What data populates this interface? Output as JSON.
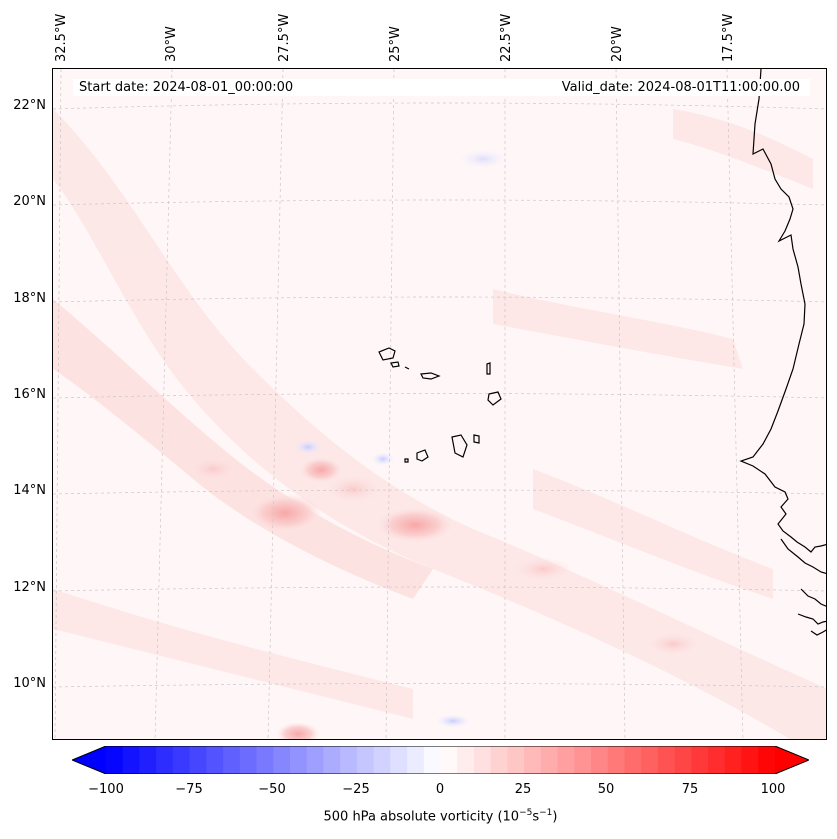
{
  "map": {
    "variable": "500 hPa absolute vorticity",
    "units_prefix": "(10",
    "units_exp1": "−5",
    "units_mid": "s",
    "units_exp2": "−1",
    "units_suffix": ")",
    "start_date_label": "Start date: 2024-08-01_00:00:00",
    "valid_date_label": "Valid_date: 2024-08-01T11:00:00.00",
    "lon_labels": [
      "32.5°W",
      "30°W",
      "27.5°W",
      "25°W",
      "22.5°W",
      "20°W",
      "17.5°W"
    ],
    "lat_labels": [
      "22°N",
      "20°N",
      "18°N",
      "16°N",
      "14°N",
      "12°N",
      "10°N"
    ],
    "region": "Cape Verde Islands and West African coast"
  },
  "colorbar": {
    "min": -100,
    "max": 100,
    "ticks": [
      "−100",
      "−75",
      "−50",
      "−25",
      "0",
      "25",
      "50",
      "75",
      "100"
    ],
    "low_color": "#0000ff",
    "mid_color": "#ffffff",
    "high_color": "#ff0000",
    "extend": "both"
  },
  "colors": {
    "background_tint": "#fff7f7",
    "coastline": "#000000",
    "gridline": "#c8c8c8"
  }
}
